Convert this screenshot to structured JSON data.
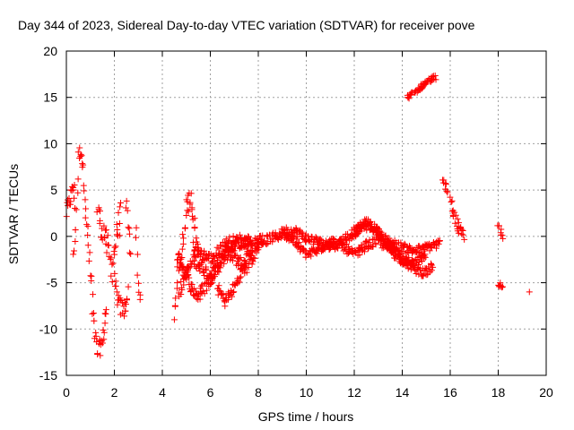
{
  "chart_data": {
    "type": "scatter",
    "title": "Day 344 of 2023, Sidereal Day-to-day VTEC variation (SDTVAR) for receiver pove",
    "xlabel": "GPS time / hours",
    "ylabel": "SDTVAR / TECUs",
    "xlim": [
      0,
      20
    ],
    "ylim": [
      -15,
      20
    ],
    "xticks": [
      0,
      2,
      4,
      6,
      8,
      10,
      12,
      14,
      16,
      18,
      20
    ],
    "yticks": [
      -15,
      -10,
      -5,
      0,
      5,
      10,
      15,
      20
    ],
    "grid": true,
    "marker": "+",
    "color": "#ff0000",
    "segments": [
      {
        "x": [
          0.0,
          0.1,
          0.2,
          0.3,
          0.35
        ],
        "y": [
          2.5,
          3.5,
          4.5,
          5.5,
          3.0
        ],
        "noise": 0.9
      },
      {
        "x": [
          0.4,
          0.5,
          0.6,
          0.7,
          0.8
        ],
        "y": [
          1.0,
          8.5,
          9.5,
          7.0,
          4.0
        ],
        "noise": 0.8
      },
      {
        "x": [
          0.3,
          0.4
        ],
        "y": [
          -1.5,
          0.5
        ],
        "noise": 1.0
      },
      {
        "x": [
          0.8,
          0.9,
          1.0,
          1.1
        ],
        "y": [
          2.5,
          0.0,
          -4.0,
          -7.0
        ],
        "noise": 1.2
      },
      {
        "x": [
          1.1,
          1.3,
          1.5,
          1.7
        ],
        "y": [
          -8.5,
          -12.5,
          -11.5,
          -7.0
        ],
        "noise": 1.0
      },
      {
        "x": [
          1.3,
          1.5,
          1.7,
          1.9,
          2.1,
          2.3
        ],
        "y": [
          2.5,
          1.0,
          -1.0,
          -3.5,
          0.5,
          2.5
        ],
        "noise": 1.5
      },
      {
        "x": [
          2.0,
          2.2,
          2.4,
          2.6
        ],
        "y": [
          -5.0,
          -7.5,
          -8.0,
          -6.0
        ],
        "noise": 1.0
      },
      {
        "x": [
          2.5,
          2.6,
          2.7
        ],
        "y": [
          4.0,
          1.0,
          -3.0
        ],
        "noise": 1.0
      },
      {
        "x": [
          2.9,
          3.0,
          3.1
        ],
        "y": [
          1.0,
          -5.5,
          -7.5
        ],
        "noise": 0.5
      },
      {
        "x": [
          4.5,
          4.6,
          4.8,
          5.0,
          5.2,
          5.4,
          5.6
        ],
        "y": [
          -9.0,
          -5.0,
          -2.0,
          3.0,
          4.5,
          0.0,
          -4.0
        ],
        "noise": 1.0
      },
      {
        "x": [
          4.7,
          5.0,
          5.3,
          5.6,
          6.0,
          6.4,
          6.8,
          7.2,
          7.6,
          8.0
        ],
        "y": [
          -6.0,
          -4.0,
          -2.5,
          -3.0,
          -4.5,
          -3.0,
          -1.5,
          -0.5,
          -1.0,
          -0.5
        ],
        "noise": 0.7
      },
      {
        "x": [
          4.6,
          4.9,
          5.2,
          5.5,
          5.9,
          6.3,
          6.7,
          7.1,
          7.5,
          7.9,
          8.2
        ],
        "y": [
          -2.0,
          -3.5,
          -5.5,
          -6.5,
          -5.0,
          -3.0,
          -1.5,
          -2.5,
          -3.5,
          -1.5,
          0.0
        ],
        "noise": 0.7
      },
      {
        "x": [
          6.3,
          6.6,
          6.9,
          7.2,
          7.5,
          7.8
        ],
        "y": [
          -5.5,
          -7.0,
          -6.0,
          -4.5,
          -2.5,
          -1.0
        ],
        "noise": 0.6
      },
      {
        "x": [
          5.3,
          5.7,
          6.1,
          6.5,
          6.9,
          7.3,
          7.7
        ],
        "y": [
          -1.0,
          -2.0,
          -2.5,
          -1.0,
          -0.5,
          -0.8,
          -0.2
        ],
        "noise": 0.6
      },
      {
        "x": [
          8.0,
          8.4,
          8.8,
          9.2,
          9.6,
          10.0,
          10.4,
          10.8,
          11.2,
          11.6,
          12.0,
          12.4,
          12.8,
          13.2,
          13.6,
          14.0,
          14.4,
          14.8,
          15.2,
          15.6
        ],
        "y": [
          -0.8,
          -0.3,
          0.0,
          0.6,
          0.5,
          -0.2,
          -0.5,
          -0.9,
          -1.0,
          -0.3,
          0.5,
          1.2,
          1.0,
          -0.2,
          -0.8,
          -1.2,
          -1.5,
          -1.5,
          -1.0,
          -0.8
        ],
        "noise": 0.5
      },
      {
        "x": [
          9.0,
          9.5,
          10.0,
          10.5,
          11.0,
          11.5,
          12.0,
          12.5,
          13.0,
          13.5,
          14.0,
          14.5,
          15.0,
          15.3
        ],
        "y": [
          0.5,
          -0.5,
          -2.0,
          -1.5,
          -0.5,
          -1.0,
          -2.0,
          -1.0,
          -0.5,
          -1.5,
          -2.5,
          -3.5,
          -4.0,
          -3.0
        ],
        "noise": 0.5
      },
      {
        "x": [
          12.0,
          12.5,
          13.0,
          13.5,
          14.0,
          14.5,
          15.0
        ],
        "y": [
          0.0,
          1.5,
          0.5,
          -1.0,
          -2.5,
          -3.0,
          -2.0
        ],
        "noise": 0.5
      },
      {
        "x": [
          14.2,
          14.5,
          14.8,
          15.1,
          15.4
        ],
        "y": [
          15.0,
          15.5,
          16.2,
          16.8,
          17.2
        ],
        "noise": 0.25
      },
      {
        "x": [
          15.7,
          15.9
        ],
        "y": [
          6.0,
          4.8
        ],
        "noise": 0.3
      },
      {
        "x": [
          16.0,
          16.2,
          16.4,
          16.6
        ],
        "y": [
          3.5,
          2.0,
          0.5,
          -0.5
        ],
        "noise": 0.8
      },
      {
        "x": [
          18.0,
          18.1,
          18.2
        ],
        "y": [
          1.2,
          0.5,
          -0.5
        ],
        "noise": 0.4
      },
      {
        "x": [
          18.0,
          18.2
        ],
        "y": [
          -5.0,
          -5.8
        ],
        "noise": 0.3
      },
      {
        "x": [
          19.3
        ],
        "y": [
          -6.0
        ],
        "noise": 0.0
      }
    ]
  }
}
